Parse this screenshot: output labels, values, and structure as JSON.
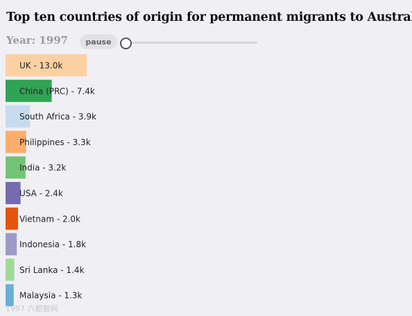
{
  "header": {
    "title": "Top ten countries of origin for permanent migrants to Australia",
    "year_text": "Year: 1997",
    "pause_label": "pause"
  },
  "timeline": {
    "position": 0
  },
  "watermark": "1997 六都智网",
  "chart_data": {
    "type": "bar",
    "orientation": "horizontal",
    "title": "Top ten countries of origin for permanent migrants to Australia",
    "year": 1997,
    "xlim": [
      0,
      65
    ],
    "categories": [
      "UK",
      "China (PRC)",
      "South Africa",
      "Philippines",
      "India",
      "USA",
      "Vietnam",
      "Indonesia",
      "Sri Lanka",
      "Malaysia"
    ],
    "values": [
      13.0,
      7.4,
      3.9,
      3.3,
      3.2,
      2.4,
      2.0,
      1.8,
      1.4,
      1.3
    ],
    "labels": [
      "UK - 13.0k",
      "China (PRC) - 7.4k",
      "South Africa - 3.9k",
      "Philippines - 3.3k",
      "India - 3.2k",
      "USA - 2.4k",
      "Vietnam - 2.0k",
      "Indonesia - 1.8k",
      "Sri Lanka - 1.4k",
      "Malaysia - 1.3k"
    ],
    "colors": [
      "#fdd0a2",
      "#31a354",
      "#c6dbef",
      "#fdae6b",
      "#74c476",
      "#756bb1",
      "#e6550d",
      "#9e9ac8",
      "#a1d99b",
      "#6baed6"
    ],
    "grid": false,
    "legend": "none"
  }
}
